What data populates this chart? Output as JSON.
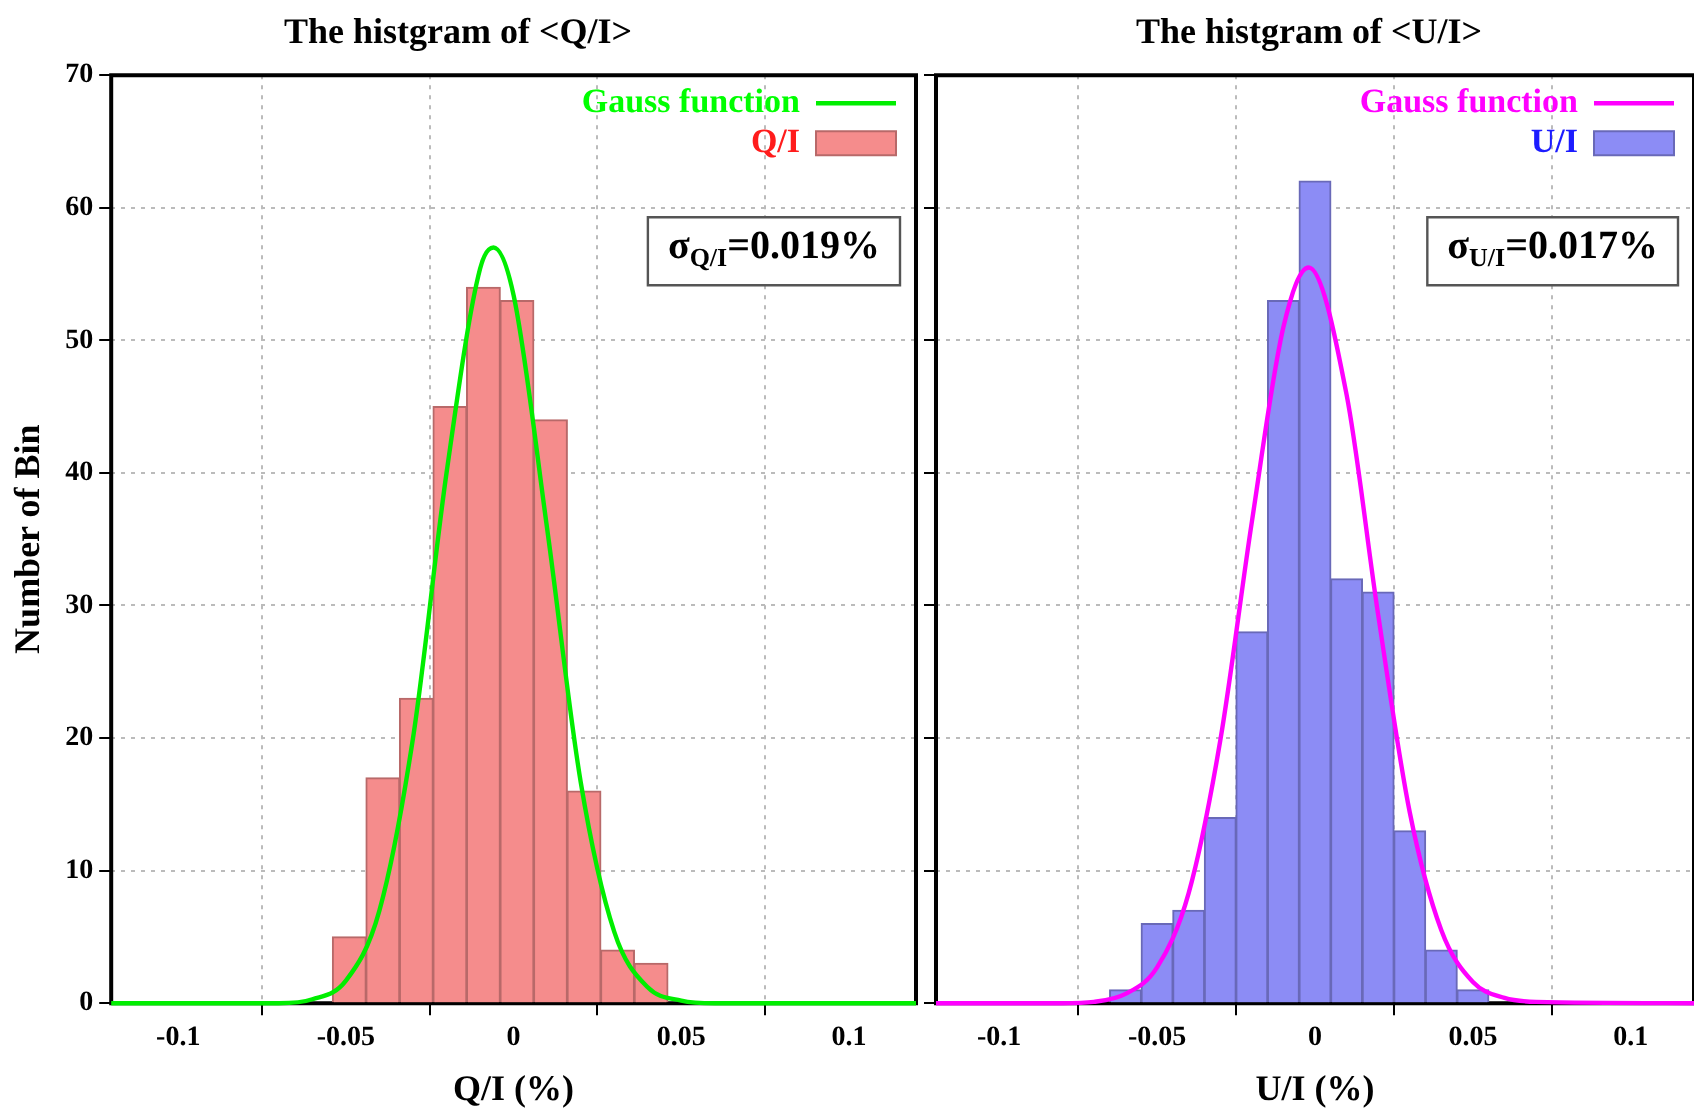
{
  "chart_data": [
    {
      "type": "histogram",
      "title": "The histgram of <Q/I>",
      "xlabel": "Q/I (%)",
      "ylabel": "Number of Bin",
      "xlim": [
        -0.12,
        0.12
      ],
      "xticks": [
        -0.1,
        -0.05,
        0,
        0.05,
        0.1
      ],
      "ylim": [
        0,
        70
      ],
      "yticks": [
        0,
        10,
        20,
        30,
        40,
        50,
        60,
        70
      ],
      "grid": true,
      "legend": "top right",
      "annotations": [
        "σ$_{Q/I}$=0.019%"
      ],
      "series": [
        {
          "type": "line",
          "name": "Gauss function",
          "color": "#00ee00",
          "x": [
            -0.12,
            -0.08,
            -0.07,
            -0.06,
            -0.05,
            -0.04,
            -0.03,
            -0.02,
            -0.01,
            -0.006,
            0,
            0.01,
            0.02,
            0.03,
            0.04,
            0.05,
            0.06,
            0.12
          ],
          "values": [
            0,
            0,
            0,
            0.3,
            1.7,
            7,
            20,
            40,
            55.4,
            57,
            53.4,
            35.8,
            16.7,
            5.4,
            1.2,
            0.2,
            0,
            0
          ]
        },
        {
          "name": "Q/I",
          "color": "#f58c8c",
          "bins": [
            -0.054,
            -0.044,
            -0.034,
            -0.024,
            -0.014,
            -0.004,
            0.006,
            0.016,
            0.026,
            0.036,
            0.046
          ],
          "values": [
            5,
            17,
            23,
            45,
            54,
            53,
            44,
            16,
            4,
            3
          ]
        }
      ]
    },
    {
      "type": "histogram",
      "title": "The histgram of <U/I>",
      "xlabel": "U/I (%)",
      "xlim": [
        -0.12,
        0.12
      ],
      "xticks": [
        -0.1,
        -0.05,
        0,
        0.05,
        0.1
      ],
      "ylim": [
        0,
        70
      ],
      "yticks": [
        0,
        10,
        20,
        30,
        40,
        50,
        60,
        70
      ],
      "tick_labels": "x",
      "grid": true,
      "legend": "top right",
      "annotations": [
        "σ$_{U/I}$=0.017%"
      ],
      "series": [
        {
          "type": "line",
          "name": "Gauss function",
          "color": "#ff00ff",
          "x": [
            -0.12,
            -0.08,
            -0.07,
            -0.06,
            -0.05,
            -0.04,
            -0.03,
            -0.02,
            -0.01,
            -0.002,
            0.01,
            0.02,
            0.03,
            0.04,
            0.05,
            0.06,
            0.07,
            0.12
          ],
          "values": [
            0,
            0,
            0.1,
            0.7,
            2.7,
            8.3,
            19.8,
            36.3,
            51,
            55.5,
            45.9,
            29.3,
            14.4,
            5.5,
            1.6,
            0.4,
            0.1,
            0
          ]
        },
        {
          "name": "U/I",
          "color": "#8c8cf5",
          "bins": [
            -0.065,
            -0.055,
            -0.045,
            -0.035,
            -0.025,
            -0.015,
            -0.005,
            0.005,
            0.015,
            0.025,
            0.035,
            0.045,
            0.055
          ],
          "values": [
            1,
            6,
            7,
            14,
            28,
            53,
            62,
            32,
            31,
            13,
            4,
            1
          ]
        }
      ]
    }
  ]
}
